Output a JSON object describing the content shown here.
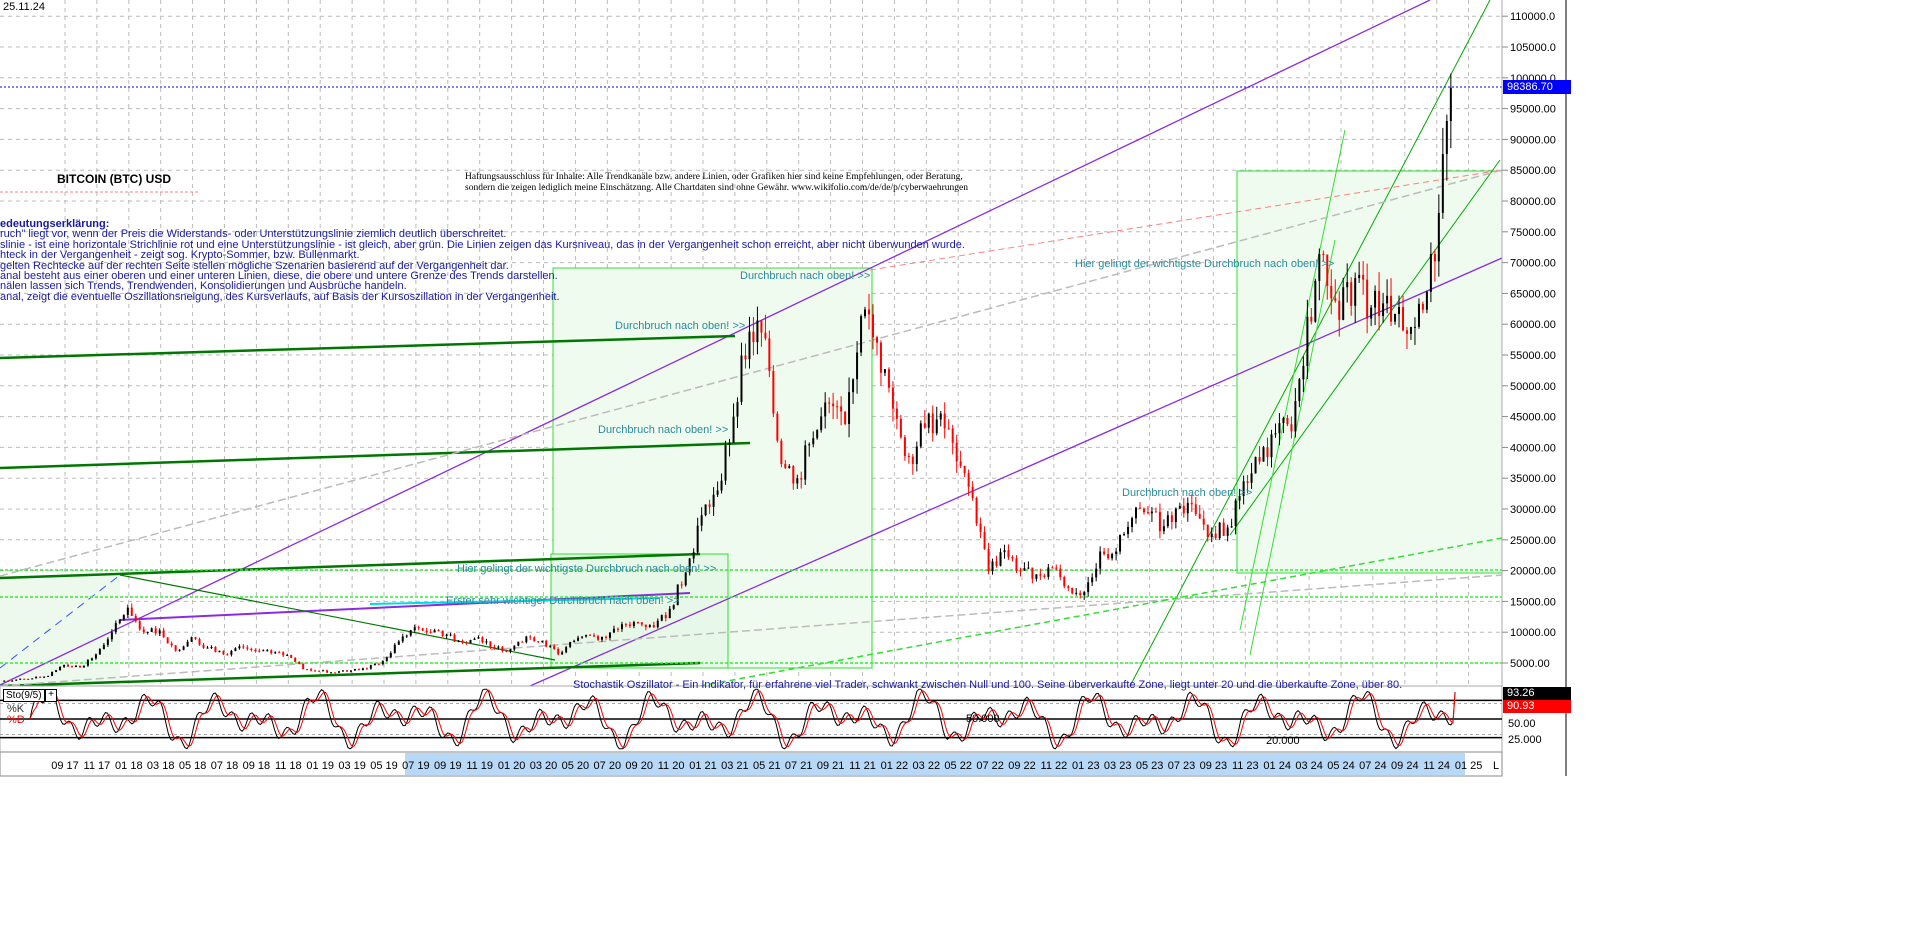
{
  "header": {
    "date": "25.11.24",
    "title": "BITCOIN (BTC) USD"
  },
  "disclaimer": [
    "Haftungsausschluss für Inhalte: Alle Trendkanäle bzw. andere Linien, oder Grafiken hier sind keine Empfehlungen, oder Beratung,",
    "sondern die zeigen lediglich meine  Einschätzung. Alle Chartdaten sind ohne Gewähr.  www.wikifolio.com/de/de/p/cyberwaehrungen"
  ],
  "legend": {
    "heading": "edeutungserklärung:",
    "lines": [
      "ruch\" liegt vor, wenn der Preis die Widerstands- oder Unterstützungslinie ziemlich deutlich überschreitet.",
      "slinie - ist eine horizontale Strichlinie rot und eine Unterstützungslinie - ist gleich, aber grün. Die Linien zeigen das Kursniveau, das in der Vergangenheit schon erreicht, aber nicht überwunden wurde.",
      "hteck in der Vergangenheit - zeigt sog. Krypto-Sommer, bzw. Bullenmarkt.",
      "gelten Rechtecke auf der rechten Seite stellen mögliche Szenarien basierend auf der Vergangenheit dar.",
      "anal besteht aus einer oberen und einer unteren Linien, diese, die obere und untere Grenze des Trends darstellen.",
      "nälen lassen sich Trends, Trendwenden, Konsolidierungen und Ausbrüche handeln.",
      "anal, zeigt die eventuelle Oszillationsneigung, des Kursverlaufs, auf Basis der Kursoszillation in der Vergangenheit."
    ]
  },
  "annotations": {
    "breakout_1": "Durchbruch nach oben! >>",
    "breakout_2": "Durchbruch nach oben! >>",
    "breakout_3": "Durchbruch nach oben! >>",
    "breakout_4": "Durchbruch nach oben! >>",
    "key_breakout_1": "Hier gelingt der wichtigste Durchbruch nach oben! >>",
    "key_breakout_2": "Hier gelingt der wichtigste Durchbruch nach oben! >>",
    "first_breakout": "Erster sehr wichtiger Durchbruch nach oben! >>",
    "stoch_note": "Stochastik Oszillator - Ein Indikator, für erfahrene viel Trader, schwankt zwischen Null und 100. Seine überverkaufte Zone, liegt unter 20 und die überkaufte Zone, über 80.",
    "osc_50": "50.000",
    "osc_20": "20.000"
  },
  "colors": {
    "up": "#000000",
    "down": "#ff0000",
    "last_price": "#0000ff",
    "trend_purple": "#8a2be2",
    "trend_green": "#007700",
    "box_green": "#33dd33",
    "grid": "#bbbbbb"
  },
  "chart_data": [
    {
      "type": "candlestick",
      "title": "BITCOIN (BTC) USD",
      "y_axis": {
        "ticks": [
          "5000.00",
          "10000.00",
          "15000.00",
          "20000.00",
          "25000.00",
          "30000.00",
          "35000.00",
          "40000.00",
          "45000.00",
          "50000.00",
          "55000.00",
          "60000.00",
          "65000.00",
          "70000.00",
          "75000.00",
          "80000.00",
          "85000.00",
          "90000.00",
          "95000.00",
          "100000.0",
          "105000.0",
          "110000.0"
        ],
        "range": [
          3000,
          114000
        ],
        "side": "right",
        "grid": true
      },
      "last_price": {
        "value": 98386.7,
        "label": "98386.70"
      },
      "x_axis": {
        "ticks": [
          "09 17",
          "11 17",
          "01 18",
          "03 18",
          "05 18",
          "07 18",
          "09 18",
          "11 18",
          "01 19",
          "03 19",
          "05 19",
          "07 19",
          "09 19",
          "11 19",
          "01 20",
          "03 20",
          "05 20",
          "07 20",
          "09 20",
          "11 20",
          "01 21",
          "03 21",
          "05 21",
          "07 21",
          "09 21",
          "11 21",
          "01 22",
          "03 22",
          "05 22",
          "07 22",
          "09 22",
          "11 22",
          "01 23",
          "03 23",
          "05 23",
          "07 23",
          "09 23",
          "11 23",
          "01 24",
          "03 24",
          "05 24",
          "07 24",
          "09 24",
          "11 24",
          "01 25"
        ],
        "end_label": "L"
      },
      "months": [
        "2017-05",
        "2017-06",
        "2017-07",
        "2017-08",
        "2017-09",
        "2017-10",
        "2017-11",
        "2017-12",
        "2018-01",
        "2018-02",
        "2018-03",
        "2018-04",
        "2018-05",
        "2018-06",
        "2018-07",
        "2018-08",
        "2018-09",
        "2018-10",
        "2018-11",
        "2018-12",
        "2019-01",
        "2019-02",
        "2019-03",
        "2019-04",
        "2019-05",
        "2019-06",
        "2019-07",
        "2019-08",
        "2019-09",
        "2019-10",
        "2019-11",
        "2019-12",
        "2020-01",
        "2020-02",
        "2020-03",
        "2020-04",
        "2020-05",
        "2020-06",
        "2020-07",
        "2020-08",
        "2020-09",
        "2020-10",
        "2020-11",
        "2020-12",
        "2021-01",
        "2021-02",
        "2021-03",
        "2021-04",
        "2021-05",
        "2021-06",
        "2021-07",
        "2021-08",
        "2021-09",
        "2021-10",
        "2021-11",
        "2021-12",
        "2022-01",
        "2022-02",
        "2022-03",
        "2022-04",
        "2022-05",
        "2022-06",
        "2022-07",
        "2022-08",
        "2022-09",
        "2022-10",
        "2022-11",
        "2022-12",
        "2023-01",
        "2023-02",
        "2023-03",
        "2023-04",
        "2023-05",
        "2023-06",
        "2023-07",
        "2023-08",
        "2023-09",
        "2023-10",
        "2023-11",
        "2023-12",
        "2024-01",
        "2024-02",
        "2024-03",
        "2024-04",
        "2024-05",
        "2024-06",
        "2024-07",
        "2024-08",
        "2024-09",
        "2024-10",
        "2024-11"
      ],
      "close": [
        2300,
        2500,
        2900,
        4700,
        4300,
        6400,
        10000,
        14000,
        10000,
        10300,
        7000,
        9200,
        7500,
        6400,
        7700,
        7000,
        6600,
        6300,
        4000,
        3700,
        3450,
        3800,
        4100,
        5300,
        8500,
        10800,
        10000,
        9600,
        8300,
        9200,
        7500,
        7200,
        9300,
        8600,
        6400,
        8600,
        9500,
        9100,
        11300,
        11600,
        10800,
        13800,
        19700,
        29000,
        33000,
        45000,
        58800,
        57700,
        37300,
        35000,
        41500,
        47100,
        43800,
        61300,
        57000,
        46300,
        38500,
        43200,
        45500,
        37700,
        31800,
        19900,
        23300,
        20000,
        19400,
        20500,
        17200,
        16500,
        23100,
        23100,
        28500,
        29300,
        27200,
        30500,
        29200,
        26000,
        27000,
        34500,
        37700,
        42300,
        42600,
        61200,
        71300,
        60700,
        67500,
        62700,
        64600,
        59000,
        63300,
        70200,
        98386.7
      ]
    },
    {
      "type": "line",
      "title": "Sto(9/5)",
      "series": [
        {
          "name": "%K",
          "last": "93.26",
          "color": "#000000"
        },
        {
          "name": "%D",
          "last": "90.93",
          "color": "#ff0000"
        }
      ],
      "y_axis": {
        "ticks": [
          "25.000",
          "50.00"
        ],
        "range": [
          0,
          100
        ],
        "levels": [
          20,
          50,
          80
        ]
      }
    }
  ]
}
